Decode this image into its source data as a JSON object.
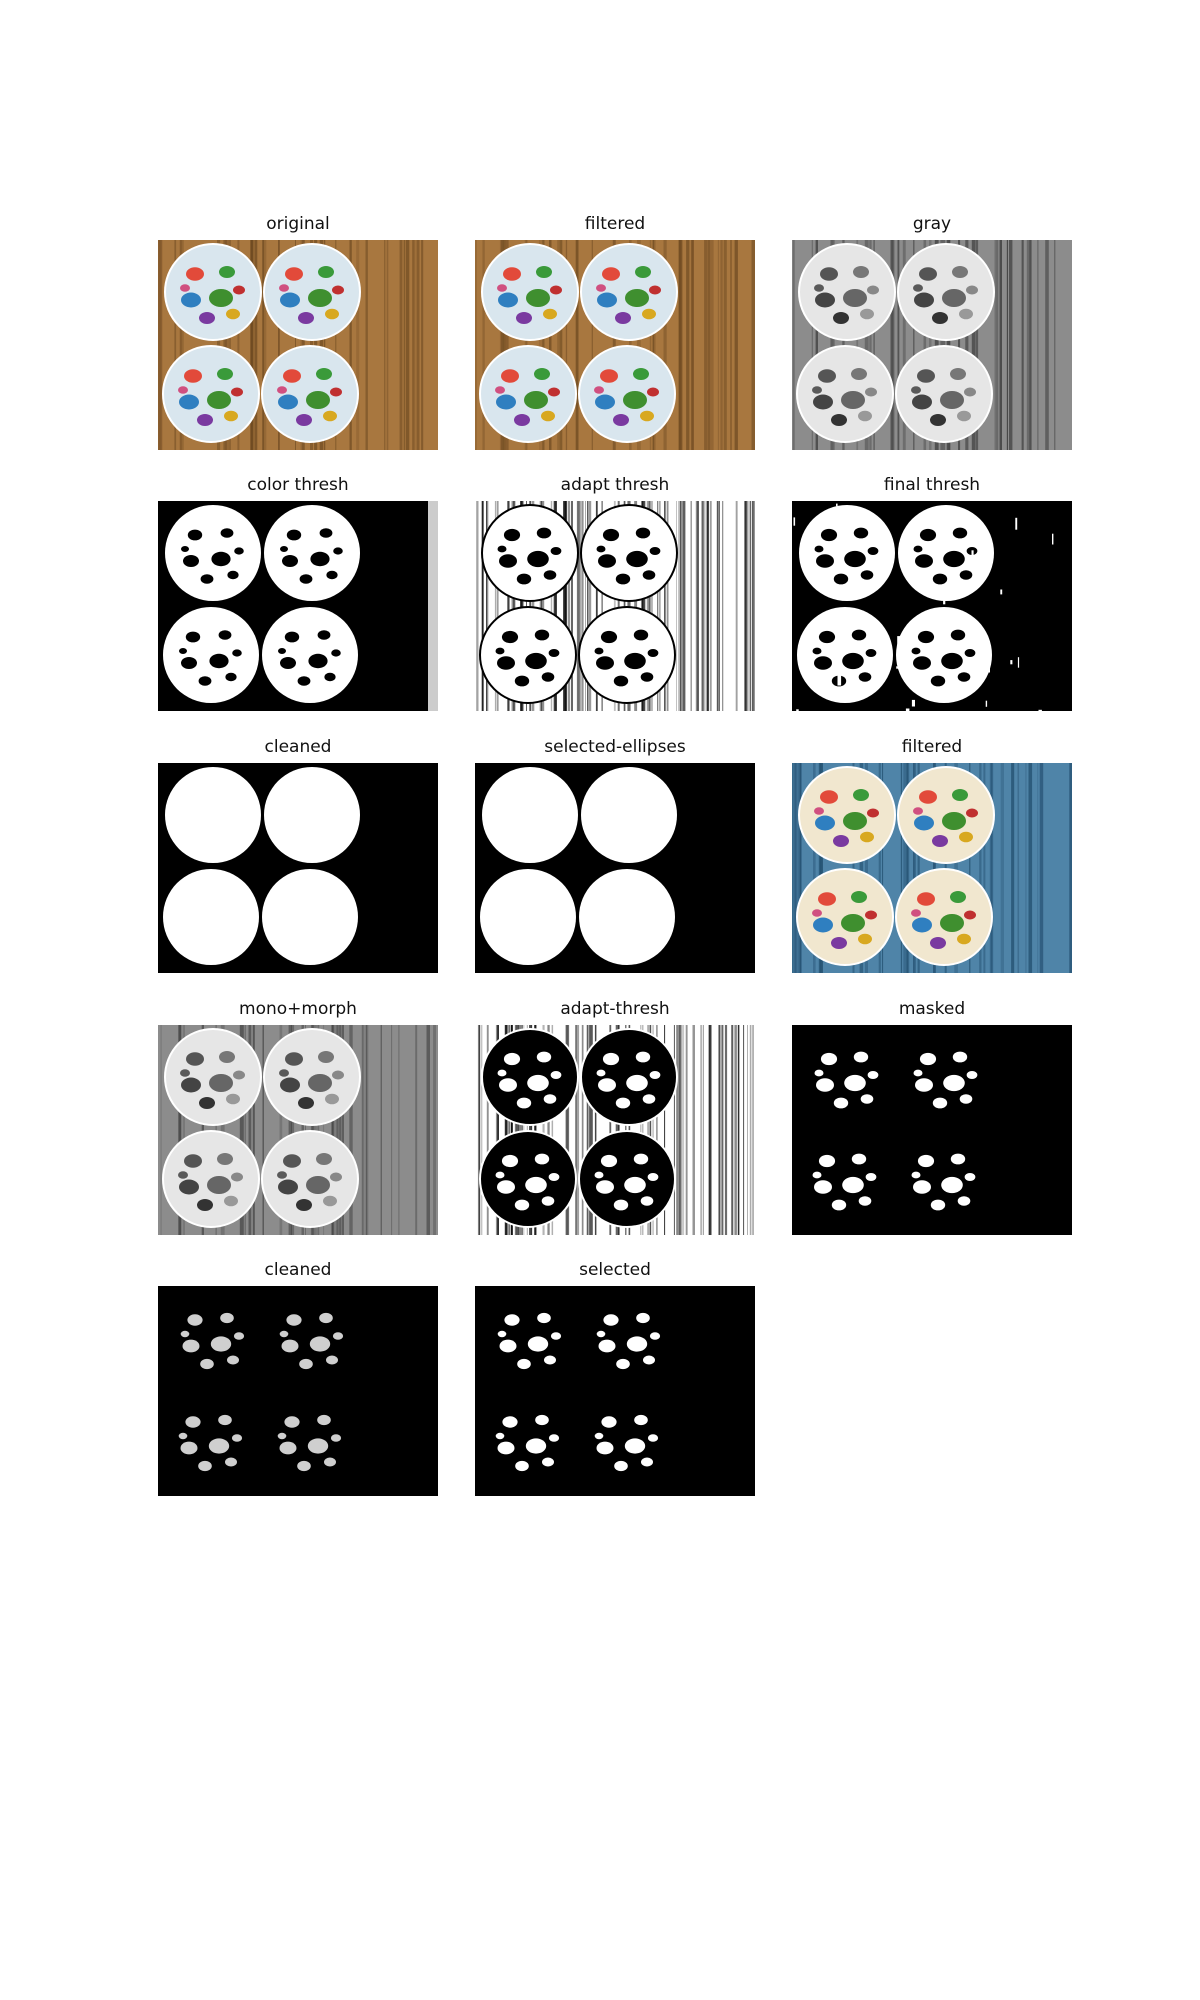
{
  "panels": [
    {
      "title": "original",
      "style": "color"
    },
    {
      "title": "filtered",
      "style": "color"
    },
    {
      "title": "gray",
      "style": "gray"
    },
    {
      "title": "color thresh",
      "style": "colorthresh"
    },
    {
      "title": "adapt thresh",
      "style": "adapt"
    },
    {
      "title": "final thresh",
      "style": "final"
    },
    {
      "title": "cleaned",
      "style": "discs"
    },
    {
      "title": "selected-ellipses",
      "style": "discs"
    },
    {
      "title": "filtered",
      "style": "bluefilter"
    },
    {
      "title": "mono+morph",
      "style": "gray"
    },
    {
      "title": "adapt-thresh",
      "style": "adaptinv"
    },
    {
      "title": "masked",
      "style": "masked"
    },
    {
      "title": "cleaned",
      "style": "blobsgray"
    },
    {
      "title": "selected",
      "style": "blobs"
    }
  ],
  "colors": {
    "wood": "#a8773f",
    "wood_dark": "#6e4a22",
    "card": "#d9e6ee",
    "blue_wood": "#4f84a8",
    "cream_card": "#f1e7cf",
    "black": "#000000",
    "white": "#ffffff"
  }
}
